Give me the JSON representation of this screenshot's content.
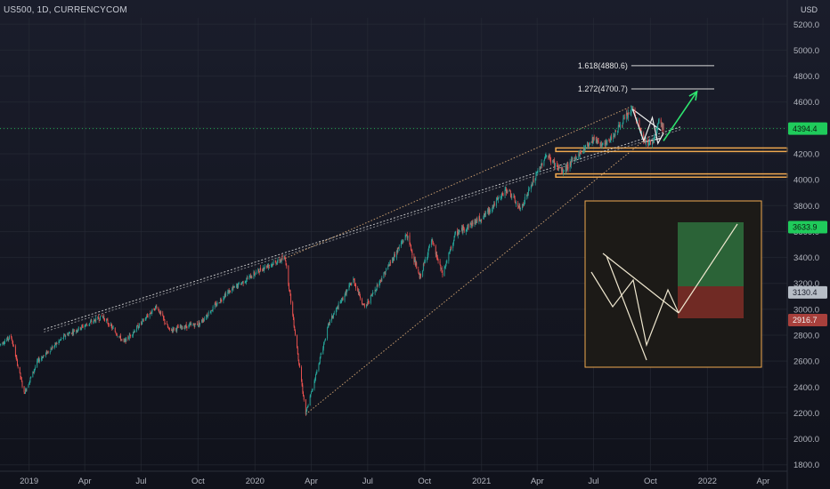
{
  "header": {
    "symbol_title": "US500, 1D, CURRENCYCOM",
    "axis_unit": "USD"
  },
  "colors": {
    "bull": "#26a69a",
    "bear": "#ef5350",
    "grid": "#2a2e39",
    "channel": "#c49a6c",
    "trend": "#e0e0e0",
    "arrow": "#2ee56f",
    "current_price": "#1fcb5b",
    "zone": "#f0a94f"
  },
  "fib_levels": [
    {
      "label": "1.618(4880.6)",
      "value": 4880.6
    },
    {
      "label": "1.272(4700.7)",
      "value": 4700.7
    }
  ],
  "price_badges": [
    {
      "text": "4394.4",
      "value": 4394.4,
      "bg": "#1fcb5b",
      "fg": "#0d1a10"
    },
    {
      "text": "3633.9",
      "value": 3633.9,
      "bg": "#1fcb5b",
      "fg": "#0d1a10"
    },
    {
      "text": "3130.4",
      "value": 3130.4,
      "bg": "#b7bdc6",
      "fg": "#1a1d2b"
    },
    {
      "text": "2916.7",
      "value": 2916.7,
      "bg": "#a8403c",
      "fg": "#f2f2f2"
    }
  ],
  "chart_data": {
    "type": "candlestick",
    "title": "US500, 1D, CURRENCYCOM",
    "y_unit": "USD",
    "ylim": [
      1750,
      5250
    ],
    "y_ticks": [
      1800,
      2000,
      2200,
      2400,
      2600,
      2800,
      3000,
      3200,
      3400,
      3600,
      3800,
      4000,
      4200,
      4400,
      4600,
      4800,
      5000,
      5200
    ],
    "y_tick_labels": [
      "1800.0",
      "2000.0",
      "2200.0",
      "2400.0",
      "2600.0",
      "2800.0",
      "3000.0",
      "3200.0",
      "3400.0",
      "3600.0",
      "3800.0",
      "4000.0",
      "4200.0",
      "4400.0",
      "4600.0",
      "4800.0",
      "5000.0",
      "5200.0"
    ],
    "x_range": [
      "2018-11-15",
      "2022-05-10"
    ],
    "x_ticks": [
      "2019-01-01",
      "2019-04-01",
      "2019-07-01",
      "2019-10-01",
      "2020-01-01",
      "2020-04-01",
      "2020-07-01",
      "2020-10-01",
      "2021-01-01",
      "2021-04-01",
      "2021-07-01",
      "2021-10-01",
      "2022-01-01",
      "2022-04-01"
    ],
    "x_tick_labels": [
      "2019",
      "Apr",
      "Jul",
      "Oct",
      "2020",
      "Apr",
      "Jul",
      "Oct",
      "2021",
      "Apr",
      "Jul",
      "Oct",
      "2022",
      "Apr"
    ],
    "grid": true,
    "last_price": 4394.4,
    "price_path": [
      [
        "2018-11-15",
        2730
      ],
      [
        "2018-12-03",
        2790
      ],
      [
        "2018-12-24",
        2350
      ],
      [
        "2019-01-15",
        2600
      ],
      [
        "2019-03-01",
        2800
      ],
      [
        "2019-04-30",
        2945
      ],
      [
        "2019-06-03",
        2745
      ],
      [
        "2019-07-26",
        3025
      ],
      [
        "2019-08-15",
        2840
      ],
      [
        "2019-10-03",
        2890
      ],
      [
        "2019-11-15",
        3120
      ],
      [
        "2020-01-17",
        3330
      ],
      [
        "2020-02-19",
        3393
      ],
      [
        "2020-03-23",
        2190
      ],
      [
        "2020-04-30",
        2900
      ],
      [
        "2020-06-08",
        3230
      ],
      [
        "2020-06-26",
        3010
      ],
      [
        "2020-09-02",
        3580
      ],
      [
        "2020-09-23",
        3240
      ],
      [
        "2020-10-12",
        3530
      ],
      [
        "2020-10-30",
        3270
      ],
      [
        "2020-11-20",
        3580
      ],
      [
        "2021-01-05",
        3720
      ],
      [
        "2021-02-12",
        3930
      ],
      [
        "2021-03-04",
        3770
      ],
      [
        "2021-04-15",
        4190
      ],
      [
        "2021-05-12",
        4060
      ],
      [
        "2021-07-01",
        4320
      ],
      [
        "2021-07-19",
        4260
      ],
      [
        "2021-08-30",
        4530
      ],
      [
        "2021-09-02",
        4545
      ],
      [
        "2021-09-20",
        4300
      ],
      [
        "2021-10-04",
        4280
      ],
      [
        "2021-10-15",
        4470
      ],
      [
        "2021-10-22",
        4394
      ]
    ],
    "fib_levels": [
      {
        "label": "1.618(4880.6)",
        "value": 4880.6
      },
      {
        "label": "1.272(4700.7)",
        "value": 4700.7
      }
    ],
    "support_zones": [
      [
        4218,
        4245
      ],
      [
        4020,
        4045
      ]
    ],
    "annotations": {
      "long_trendline": [
        [
          "2019-01-25",
          2845
        ],
        [
          "2021-11-20",
          4410
        ]
      ],
      "channel_upper": [
        [
          "2020-02-19",
          3393
        ],
        [
          "2021-09-02",
          4570
        ]
      ],
      "channel_lower": [
        [
          "2020-03-23",
          2190
        ],
        [
          "2021-09-20",
          4300
        ]
      ],
      "projection_arrow": [
        [
          "2021-10-22",
          4300
        ],
        [
          "2021-12-15",
          4680
        ]
      ],
      "wedge_upper": [
        [
          "2021-09-02",
          4545
        ],
        [
          "2021-10-18",
          4380
        ]
      ],
      "wedge_lower": [
        [
          "2021-09-20",
          4290
        ],
        [
          "2021-10-18",
          4320
        ]
      ]
    }
  }
}
